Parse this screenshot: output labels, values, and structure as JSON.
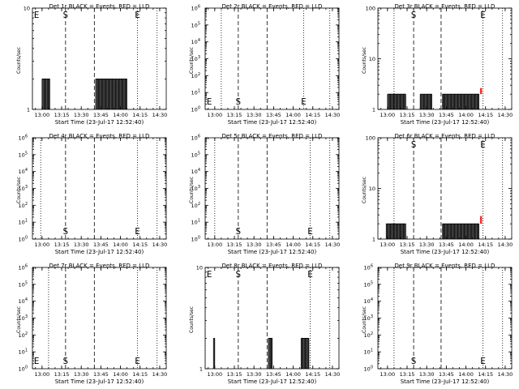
{
  "figure": {
    "xlabel": "Start Time (23-Jul-17 12:52:40)",
    "ylabel": "Counts/sec"
  },
  "chart_data": [
    {
      "type": "line",
      "title": "Det 1r BLACK = Events, RED = LLD",
      "xlabel": "Start Time (23-Jul-17 12:52:40)",
      "ylabel": "Counts/sec",
      "yscale": "log",
      "xlim": [
        "12:52:40",
        "14:35"
      ],
      "ylim": [
        1,
        10
      ],
      "xticks": [
        "13:00",
        "13:15",
        "13:30",
        "13:45",
        "14:00",
        "14:15",
        "14:30"
      ],
      "yticks": [
        "1",
        "10"
      ],
      "markers": [
        {
          "label": "E",
          "time": "12:52:40",
          "style": "dotted"
        },
        {
          "label": "S",
          "time": "13:18",
          "style": "dashed"
        },
        {
          "label": "",
          "time": "13:40",
          "style": "dashed"
        },
        {
          "label": "E",
          "time": "14:13",
          "style": "dotted"
        },
        {
          "label": "",
          "time": "14:28",
          "style": "dotted"
        }
      ],
      "series": [
        {
          "name": "Events",
          "color": "#000000",
          "segments": [
            {
              "start": "13:00",
              "end": "13:06",
              "low": 1,
              "high": 2
            },
            {
              "start": "13:41",
              "end": "14:05",
              "low": 1,
              "high": 2
            }
          ]
        }
      ]
    },
    {
      "type": "line",
      "title": "Det 2r BLACK = Events, RED = LLD",
      "xlabel": "Start Time (23-Jul-17 12:52:40)",
      "ylabel": "Counts/sec",
      "yscale": "log",
      "xlim": [
        "12:52:40",
        "14:35"
      ],
      "ylim": [
        1,
        1000000
      ],
      "xticks": [
        "13:00",
        "13:15",
        "13:30",
        "13:45",
        "14:00",
        "14:15",
        "14:30"
      ],
      "yticks": [
        "10^0",
        "10^1",
        "10^2",
        "10^3",
        "10^4",
        "10^5",
        "10^6"
      ],
      "markers": [
        {
          "label": "E",
          "time": "12:52:40",
          "style": "dotted"
        },
        {
          "label": "",
          "time": "13:05",
          "style": "dotted"
        },
        {
          "label": "S",
          "time": "13:18",
          "style": "dashed"
        },
        {
          "label": "",
          "time": "13:40",
          "style": "dashed"
        },
        {
          "label": "E",
          "time": "14:08",
          "style": "dotted"
        },
        {
          "label": "",
          "time": "14:28",
          "style": "dotted"
        }
      ],
      "series": [
        {
          "name": "Events",
          "color": "#000000",
          "segments": []
        }
      ]
    },
    {
      "type": "line",
      "title": "Det 3r BLACK = Events, RED = LLD",
      "xlabel": "Start Time (23-Jul-17 12:52:40)",
      "ylabel": "Counts/sec",
      "yscale": "log",
      "xlim": [
        "12:52:40",
        "14:35"
      ],
      "ylim": [
        1,
        100
      ],
      "xticks": [
        "13:00",
        "13:15",
        "13:30",
        "13:45",
        "14:00",
        "14:15",
        "14:30"
      ],
      "yticks": [
        "1",
        "10",
        "100"
      ],
      "markers": [
        {
          "label": "",
          "time": "13:05",
          "style": "dotted"
        },
        {
          "label": "S",
          "time": "13:20",
          "style": "dashed"
        },
        {
          "label": "",
          "time": "13:41",
          "style": "dashed"
        },
        {
          "label": "E",
          "time": "14:13",
          "style": "dotted"
        },
        {
          "label": "",
          "time": "14:28",
          "style": "dotted"
        }
      ],
      "series": [
        {
          "name": "Events",
          "color": "#000000",
          "segments": [
            {
              "start": "13:00",
              "end": "13:14",
              "low": 1,
              "high": 2
            },
            {
              "start": "13:25",
              "end": "13:34",
              "low": 1,
              "high": 2
            },
            {
              "start": "13:42",
              "end": "14:10",
              "low": 1,
              "high": 2
            }
          ]
        },
        {
          "name": "LLD",
          "color": "#ff0000",
          "segments": [
            {
              "start": "14:11",
              "end": "14:12",
              "low": 2,
              "high": 2.6
            }
          ]
        }
      ]
    },
    {
      "type": "line",
      "title": "Det 4r BLACK = Events, RED = LLD",
      "xlabel": "Start Time (23-Jul-17 12:52:40)",
      "ylabel": "Counts/sec",
      "yscale": "log",
      "xlim": [
        "12:52:40",
        "14:35"
      ],
      "ylim": [
        1,
        1000000
      ],
      "xticks": [
        "13:00",
        "13:15",
        "13:30",
        "13:45",
        "14:00",
        "14:15",
        "14:30"
      ],
      "yticks": [
        "10^0",
        "10^1",
        "10^2",
        "10^3",
        "10^4",
        "10^5",
        "10^6"
      ],
      "markers": [
        {
          "label": "",
          "time": "12:59",
          "style": "dotted"
        },
        {
          "label": "S",
          "time": "13:18",
          "style": "dashed"
        },
        {
          "label": "",
          "time": "13:40",
          "style": "dashed"
        },
        {
          "label": "E",
          "time": "14:13",
          "style": "dotted"
        },
        {
          "label": "",
          "time": "14:28",
          "style": "dotted"
        }
      ],
      "series": [
        {
          "name": "Events",
          "color": "#000000",
          "segments": []
        }
      ]
    },
    {
      "type": "line",
      "title": "Det 5r BLACK = Events, RED = LLD",
      "xlabel": "Start Time (23-Jul-17 12:52:40)",
      "ylabel": "Counts/sec",
      "yscale": "log",
      "xlim": [
        "12:52:40",
        "14:35"
      ],
      "ylim": [
        1,
        1000000
      ],
      "xticks": [
        "13:00",
        "13:15",
        "13:30",
        "13:45",
        "14:00",
        "14:15",
        "14:30"
      ],
      "yticks": [
        "10^0",
        "10^1",
        "10^2",
        "10^3",
        "10^4",
        "10^5",
        "10^6"
      ],
      "markers": [
        {
          "label": "",
          "time": "13:00",
          "style": "dotted"
        },
        {
          "label": "S",
          "time": "13:18",
          "style": "dashed"
        },
        {
          "label": "",
          "time": "13:40",
          "style": "dashed"
        },
        {
          "label": "E",
          "time": "14:13",
          "style": "dotted"
        },
        {
          "label": "",
          "time": "14:28",
          "style": "dotted"
        }
      ],
      "series": [
        {
          "name": "Events",
          "color": "#000000",
          "segments": []
        }
      ]
    },
    {
      "type": "line",
      "title": "Det 6r BLACK = Events, RED = LLD",
      "xlabel": "Start Time (23-Jul-17 12:52:40)",
      "ylabel": "Counts/sec",
      "yscale": "log",
      "xlim": [
        "12:52:40",
        "14:35"
      ],
      "ylim": [
        1,
        100
      ],
      "xticks": [
        "13:00",
        "13:15",
        "13:30",
        "13:45",
        "14:00",
        "14:15",
        "14:30"
      ],
      "yticks": [
        "1",
        "10",
        "100"
      ],
      "markers": [
        {
          "label": "",
          "time": "13:05",
          "style": "dotted"
        },
        {
          "label": "S",
          "time": "13:20",
          "style": "dashed"
        },
        {
          "label": "",
          "time": "13:41",
          "style": "dashed"
        },
        {
          "label": "E",
          "time": "14:13",
          "style": "dotted"
        },
        {
          "label": "",
          "time": "14:28",
          "style": "dotted"
        }
      ],
      "series": [
        {
          "name": "Events",
          "color": "#000000",
          "segments": [
            {
              "start": "12:59",
              "end": "13:14",
              "low": 1,
              "high": 2
            },
            {
              "start": "13:42",
              "end": "14:10",
              "low": 1,
              "high": 2
            }
          ]
        },
        {
          "name": "LLD",
          "color": "#ff0000",
          "segments": [
            {
              "start": "14:11",
              "end": "14:12",
              "low": 2,
              "high": 2.8
            }
          ]
        }
      ]
    },
    {
      "type": "line",
      "title": "Det 7r BLACK = Events, RED = LLD",
      "xlabel": "Start Time (23-Jul-17 12:52:40)",
      "ylabel": "Counts/sec",
      "yscale": "log",
      "xlim": [
        "12:52:40",
        "14:35"
      ],
      "ylim": [
        1,
        1000000
      ],
      "xticks": [
        "13:00",
        "13:15",
        "13:30",
        "13:45",
        "14:00",
        "14:15",
        "14:30"
      ],
      "yticks": [
        "10^0",
        "10^1",
        "10^2",
        "10^3",
        "10^4",
        "10^5",
        "10^6"
      ],
      "markers": [
        {
          "label": "E",
          "time": "12:52:40",
          "style": "dotted"
        },
        {
          "label": "",
          "time": "13:05",
          "style": "dotted"
        },
        {
          "label": "S",
          "time": "13:18",
          "style": "dashed"
        },
        {
          "label": "",
          "time": "13:40",
          "style": "dashed"
        },
        {
          "label": "E",
          "time": "14:13",
          "style": "dotted"
        },
        {
          "label": "",
          "time": "14:28",
          "style": "dotted"
        }
      ],
      "series": [
        {
          "name": "Events",
          "color": "#000000",
          "segments": []
        }
      ]
    },
    {
      "type": "line",
      "title": "Det 8r BLACK = Events, RED = LLD",
      "xlabel": "Start Time (23-Jul-17 12:52:40)",
      "ylabel": "Counts/sec",
      "yscale": "log",
      "xlim": [
        "12:52:40",
        "14:35"
      ],
      "ylim": [
        1,
        10
      ],
      "xticks": [
        "13:00",
        "13:15",
        "13:30",
        "13:45",
        "14:00",
        "14:15",
        "14:30"
      ],
      "yticks": [
        "1",
        "10"
      ],
      "markers": [
        {
          "label": "E",
          "time": "12:52:40",
          "style": "dotted"
        },
        {
          "label": "S",
          "time": "13:18",
          "style": "dashed"
        },
        {
          "label": "",
          "time": "13:40",
          "style": "dashed"
        },
        {
          "label": "E",
          "time": "14:13",
          "style": "dotted"
        },
        {
          "label": "",
          "time": "14:28",
          "style": "dotted"
        }
      ],
      "series": [
        {
          "name": "Events",
          "color": "#000000",
          "segments": [
            {
              "start": "12:59",
              "end": "13:00",
              "low": 1,
              "high": 2
            },
            {
              "start": "13:41",
              "end": "13:44",
              "low": 1,
              "high": 2
            },
            {
              "start": "14:06",
              "end": "14:12",
              "low": 1,
              "high": 2
            }
          ]
        }
      ]
    },
    {
      "type": "line",
      "title": "Det 9r BLACK = Events, RED = LLD",
      "xlabel": "Start Time (23-Jul-17 12:52:40)",
      "ylabel": "Counts/sec",
      "yscale": "log",
      "xlim": [
        "12:52:40",
        "14:35"
      ],
      "ylim": [
        1,
        1000000
      ],
      "xticks": [
        "13:00",
        "13:15",
        "13:30",
        "13:45",
        "14:00",
        "14:15",
        "14:30"
      ],
      "yticks": [
        "10^0",
        "10^1",
        "10^2",
        "10^3",
        "10^4",
        "10^5",
        "10^6"
      ],
      "markers": [
        {
          "label": "",
          "time": "13:05",
          "style": "dotted"
        },
        {
          "label": "S",
          "time": "13:20",
          "style": "dashed"
        },
        {
          "label": "",
          "time": "13:41",
          "style": "dashed"
        },
        {
          "label": "E",
          "time": "14:13",
          "style": "dotted"
        },
        {
          "label": "",
          "time": "14:28",
          "style": "dotted"
        }
      ],
      "series": [
        {
          "name": "Events",
          "color": "#000000",
          "segments": []
        }
      ]
    }
  ]
}
